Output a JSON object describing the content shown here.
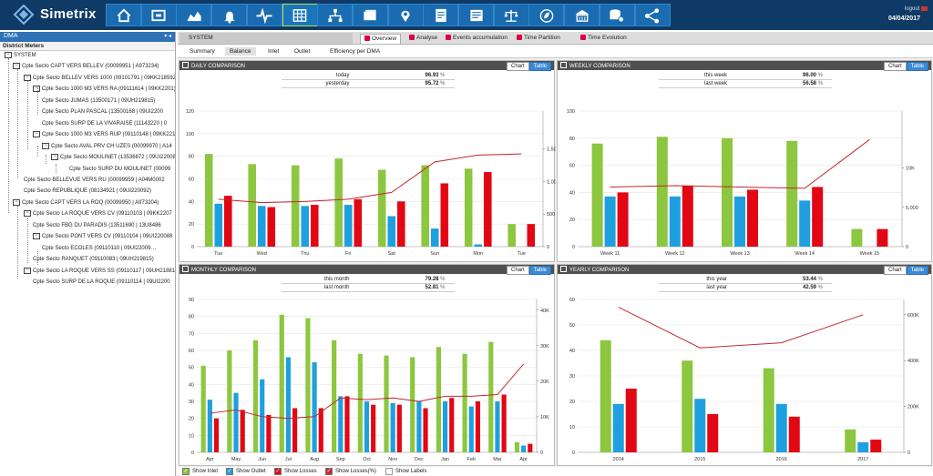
{
  "app": {
    "name": "Simetrix",
    "logout": "logout",
    "date": "04/04/2017"
  },
  "nav": [
    "home-icon",
    "meter-icon",
    "area-chart-icon",
    "bell-icon",
    "pulse-icon",
    "grid-icon",
    "network-icon",
    "card-icon",
    "map-pin-icon",
    "report-icon",
    "document-icon",
    "balance-icon",
    "leaf-icon",
    "building-icon",
    "database-gear-icon",
    "share-icon"
  ],
  "left": {
    "title": "DMA",
    "controls": "▾ ◂",
    "subtitle": "District Meters",
    "tree": [
      {
        "label": "SYSTEM",
        "toggle": "−",
        "depth": 0
      },
      {
        "label": "Cpte Secto CAPT VERS BELLEV (00099951 | A973234)",
        "toggle": "−",
        "depth": 1
      },
      {
        "label": "Cpte Secto BELLEV VERS 1000 (09101791 | 09KK218592)",
        "toggle": "−",
        "depth": 2
      },
      {
        "label": "Cpte Secto 1000 M3 VERS RA (09111614 | 09KK2201)",
        "toggle": "−",
        "depth": 3
      },
      {
        "label": "Cpte Secto JUMAS (13500171 | 09UH219815)",
        "toggle": "",
        "depth": 4
      },
      {
        "label": "Cpte Secto PLAN PASCAL (13500168 | 09UI2200",
        "toggle": "",
        "depth": 4
      },
      {
        "label": "Cpte Secto SURP DE LA VIVARAISE (11143220 | 0",
        "toggle": "",
        "depth": 4
      },
      {
        "label": "Cpte Secto 1000 M3 VERS RUP (09110148 | 09KK221",
        "toggle": "−",
        "depth": 3
      },
      {
        "label": "Cpte Secto AVAL PRV CH UZES (00099970 | A14",
        "toggle": "−",
        "depth": 4
      },
      {
        "label": "Cpte Secto MOULINET (13536872 | 09UI22008",
        "toggle": "−",
        "depth": 5
      },
      {
        "label": "Cpte Secto SURP DU MOULINET (00099",
        "toggle": "",
        "depth": 6
      },
      {
        "label": "Cpte Secto BELLEVUE VERS RU (00099959 | A04M0002",
        "toggle": "",
        "depth": 2
      },
      {
        "label": "Cpte Secto REPUBLIQUE (08134921 | 09UI220092)",
        "toggle": "",
        "depth": 2
      },
      {
        "label": "Cpte Secto CAPT VERS LA ROQ (00099950 | A973204)",
        "toggle": "−",
        "depth": 1
      },
      {
        "label": "Cpte Secto LA ROQUE VERS CV (09110103 | 09KK2207",
        "toggle": "−",
        "depth": 2
      },
      {
        "label": "Cpte Secto FBG DU PARADIS (13511690 | 13U8486",
        "toggle": "",
        "depth": 3
      },
      {
        "label": "Cpte Secto PONT VERS CV (09110104 | 09UI220088",
        "toggle": "−",
        "depth": 3
      },
      {
        "label": "Cpte Secto ECOLES (09110110 | 09UI22009…",
        "toggle": "",
        "depth": 4
      },
      {
        "label": "Cpte Secto RANQUET (09110083 | 09UH219815)",
        "toggle": "",
        "depth": 3
      },
      {
        "label": "Cpte Secto LA ROQUE VERS SS (09110117 | 09UH21881",
        "toggle": "−",
        "depth": 2
      },
      {
        "label": "Cpte Secto SURP DE LA ROQUE (09110114 | 09UI2200",
        "toggle": "",
        "depth": 3
      }
    ]
  },
  "tabs": {
    "system": "SYSTEM",
    "items": [
      "Overview",
      "Analyse",
      "Events accumulation",
      "Time Partition",
      "Time Evolution"
    ]
  },
  "subtabs": [
    "Summary",
    "Balance",
    "Inlet",
    "Outlet",
    "Efficiency per DMA"
  ],
  "buttons": {
    "chart": "Chart",
    "table": "Table"
  },
  "colors": {
    "inlet": "#8dc63f",
    "outlet": "#1ea0e0",
    "losses": "#e30613",
    "lossesPct": "#c0282d"
  },
  "panels": {
    "daily": {
      "title": "DAILY COMPARISON",
      "stats": [
        {
          "label": "today",
          "value": "96.93",
          "unit": "%"
        },
        {
          "label": "yesterday",
          "value": "95.72",
          "unit": "%"
        }
      ],
      "chart_data": {
        "type": "bar",
        "categories": [
          "Tue",
          "Wed",
          "Thu",
          "Fri",
          "Sat",
          "Sun",
          "Mon",
          "Tue"
        ],
        "series": [
          {
            "name": "Show Inlet",
            "values": [
              82,
              73,
              72,
              78,
              68,
              72,
              69,
              20
            ]
          },
          {
            "name": "Show Outlet",
            "values": [
              38,
              36,
              36,
              37,
              27,
              16,
              2,
              0
            ]
          },
          {
            "name": "Show Losses",
            "values": [
              45,
              35,
              37,
              42,
              40,
              56,
              66,
              20
            ]
          },
          {
            "name": "Show Losses(%)",
            "values": [
              42,
              39,
              40,
              42,
              48,
              75,
              81,
              82
            ]
          }
        ],
        "ylim": [
          0,
          120
        ],
        "yticks": [
          "0",
          "20",
          "40",
          "60",
          "80",
          "100",
          "120"
        ],
        "y2ticks": [
          "0",
          "500",
          "1,000",
          "1,500"
        ]
      }
    },
    "weekly": {
      "title": "WEEKLY COMPARISON",
      "stats": [
        {
          "label": "this week",
          "value": "96.00",
          "unit": "%"
        },
        {
          "label": "last week",
          "value": "56.58",
          "unit": "%"
        }
      ],
      "chart_data": {
        "type": "bar",
        "categories": [
          "Week 11",
          "Week 12",
          "Week 13",
          "Week 14",
          "Week 15"
        ],
        "series": [
          {
            "name": "Show Inlet",
            "values": [
              76,
              81,
              80,
              78,
              13
            ]
          },
          {
            "name": "Show Outlet",
            "values": [
              37,
              37,
              37,
              34,
              0
            ]
          },
          {
            "name": "Show Losses",
            "values": [
              40,
              45,
              42,
              44,
              13
            ]
          },
          {
            "name": "Show Losses(%)",
            "values": [
              44,
              45,
              44,
              43,
              79
            ]
          }
        ],
        "ylim": [
          0,
          100
        ],
        "yticks": [
          "0",
          "20",
          "40",
          "60",
          "80",
          "100"
        ],
        "y2ticks": [
          "0",
          "5,000",
          "10K"
        ]
      }
    },
    "monthly": {
      "title": "MONTHLY COMPARISON",
      "stats": [
        {
          "label": "this month",
          "value": "79.28",
          "unit": "%"
        },
        {
          "label": "last month",
          "value": "52.81",
          "unit": "%"
        }
      ],
      "chart_data": {
        "type": "bar",
        "categories": [
          "Apr",
          "May",
          "Jun",
          "Jul",
          "Aug",
          "Sep",
          "Oct",
          "Nov",
          "Dec",
          "Jan",
          "Feb",
          "Mar",
          "Apr"
        ],
        "series": [
          {
            "name": "Show Inlet",
            "values": [
              51,
              60,
              66,
              81,
              79,
              66,
              58,
              57,
              56,
              62,
              58,
              65,
              6
            ]
          },
          {
            "name": "Show Outlet",
            "values": [
              31,
              35,
              43,
              56,
              53,
              33,
              30,
              29,
              30,
              30,
              27,
              30,
              4
            ]
          },
          {
            "name": "Show Losses",
            "values": [
              20,
              25,
              22,
              26,
              26,
              33,
              28,
              28,
              26,
              32,
              30,
              34,
              5
            ]
          },
          {
            "name": "Show Losses(%)",
            "values": [
              23,
              25,
              21,
              20,
              21,
              32,
              31,
              32,
              30,
              33,
              33,
              34,
              52
            ]
          }
        ],
        "ylim": [
          0,
          90
        ],
        "yticks": [
          "0",
          "10",
          "20",
          "30",
          "40",
          "50",
          "60",
          "70",
          "80",
          "90"
        ],
        "y2ticks": [
          "0",
          "10K",
          "20K",
          "30K",
          "40K"
        ]
      }
    },
    "yearly": {
      "title": "YEARLY COMPARISON",
      "stats": [
        {
          "label": "this year",
          "value": "53.44",
          "unit": "%"
        },
        {
          "label": "last year",
          "value": "42.59",
          "unit": "%"
        }
      ],
      "chart_data": {
        "type": "bar",
        "categories": [
          "2014",
          "2015",
          "2016",
          "2017"
        ],
        "series": [
          {
            "name": "Show Inlet",
            "values": [
              44,
              36,
              33,
              9
            ]
          },
          {
            "name": "Show Outlet",
            "values": [
              19,
              21,
              19,
              4
            ]
          },
          {
            "name": "Show Losses",
            "values": [
              25,
              15,
              14,
              5
            ]
          },
          {
            "name": "Show Losses(%)",
            "values": [
              57,
              41,
              43,
              54
            ]
          }
        ],
        "ylim": [
          0,
          60
        ],
        "yticks": [
          "0",
          "10",
          "20",
          "30",
          "40",
          "50",
          "60"
        ],
        "y2ticks": [
          "0",
          "200K",
          "400K",
          "600K"
        ]
      }
    }
  },
  "legend": [
    {
      "label": "Show Inlet",
      "checked": true,
      "color": "#8dc63f"
    },
    {
      "label": "Show Outlet",
      "checked": true,
      "color": "#1ea0e0"
    },
    {
      "label": "Show Losses",
      "checked": true,
      "color": "#e30613"
    },
    {
      "label": "Show Losses(%)",
      "checked": true,
      "color": "#c0282d"
    },
    {
      "label": "Show Labels",
      "checked": false,
      "color": "#ffffff"
    }
  ]
}
